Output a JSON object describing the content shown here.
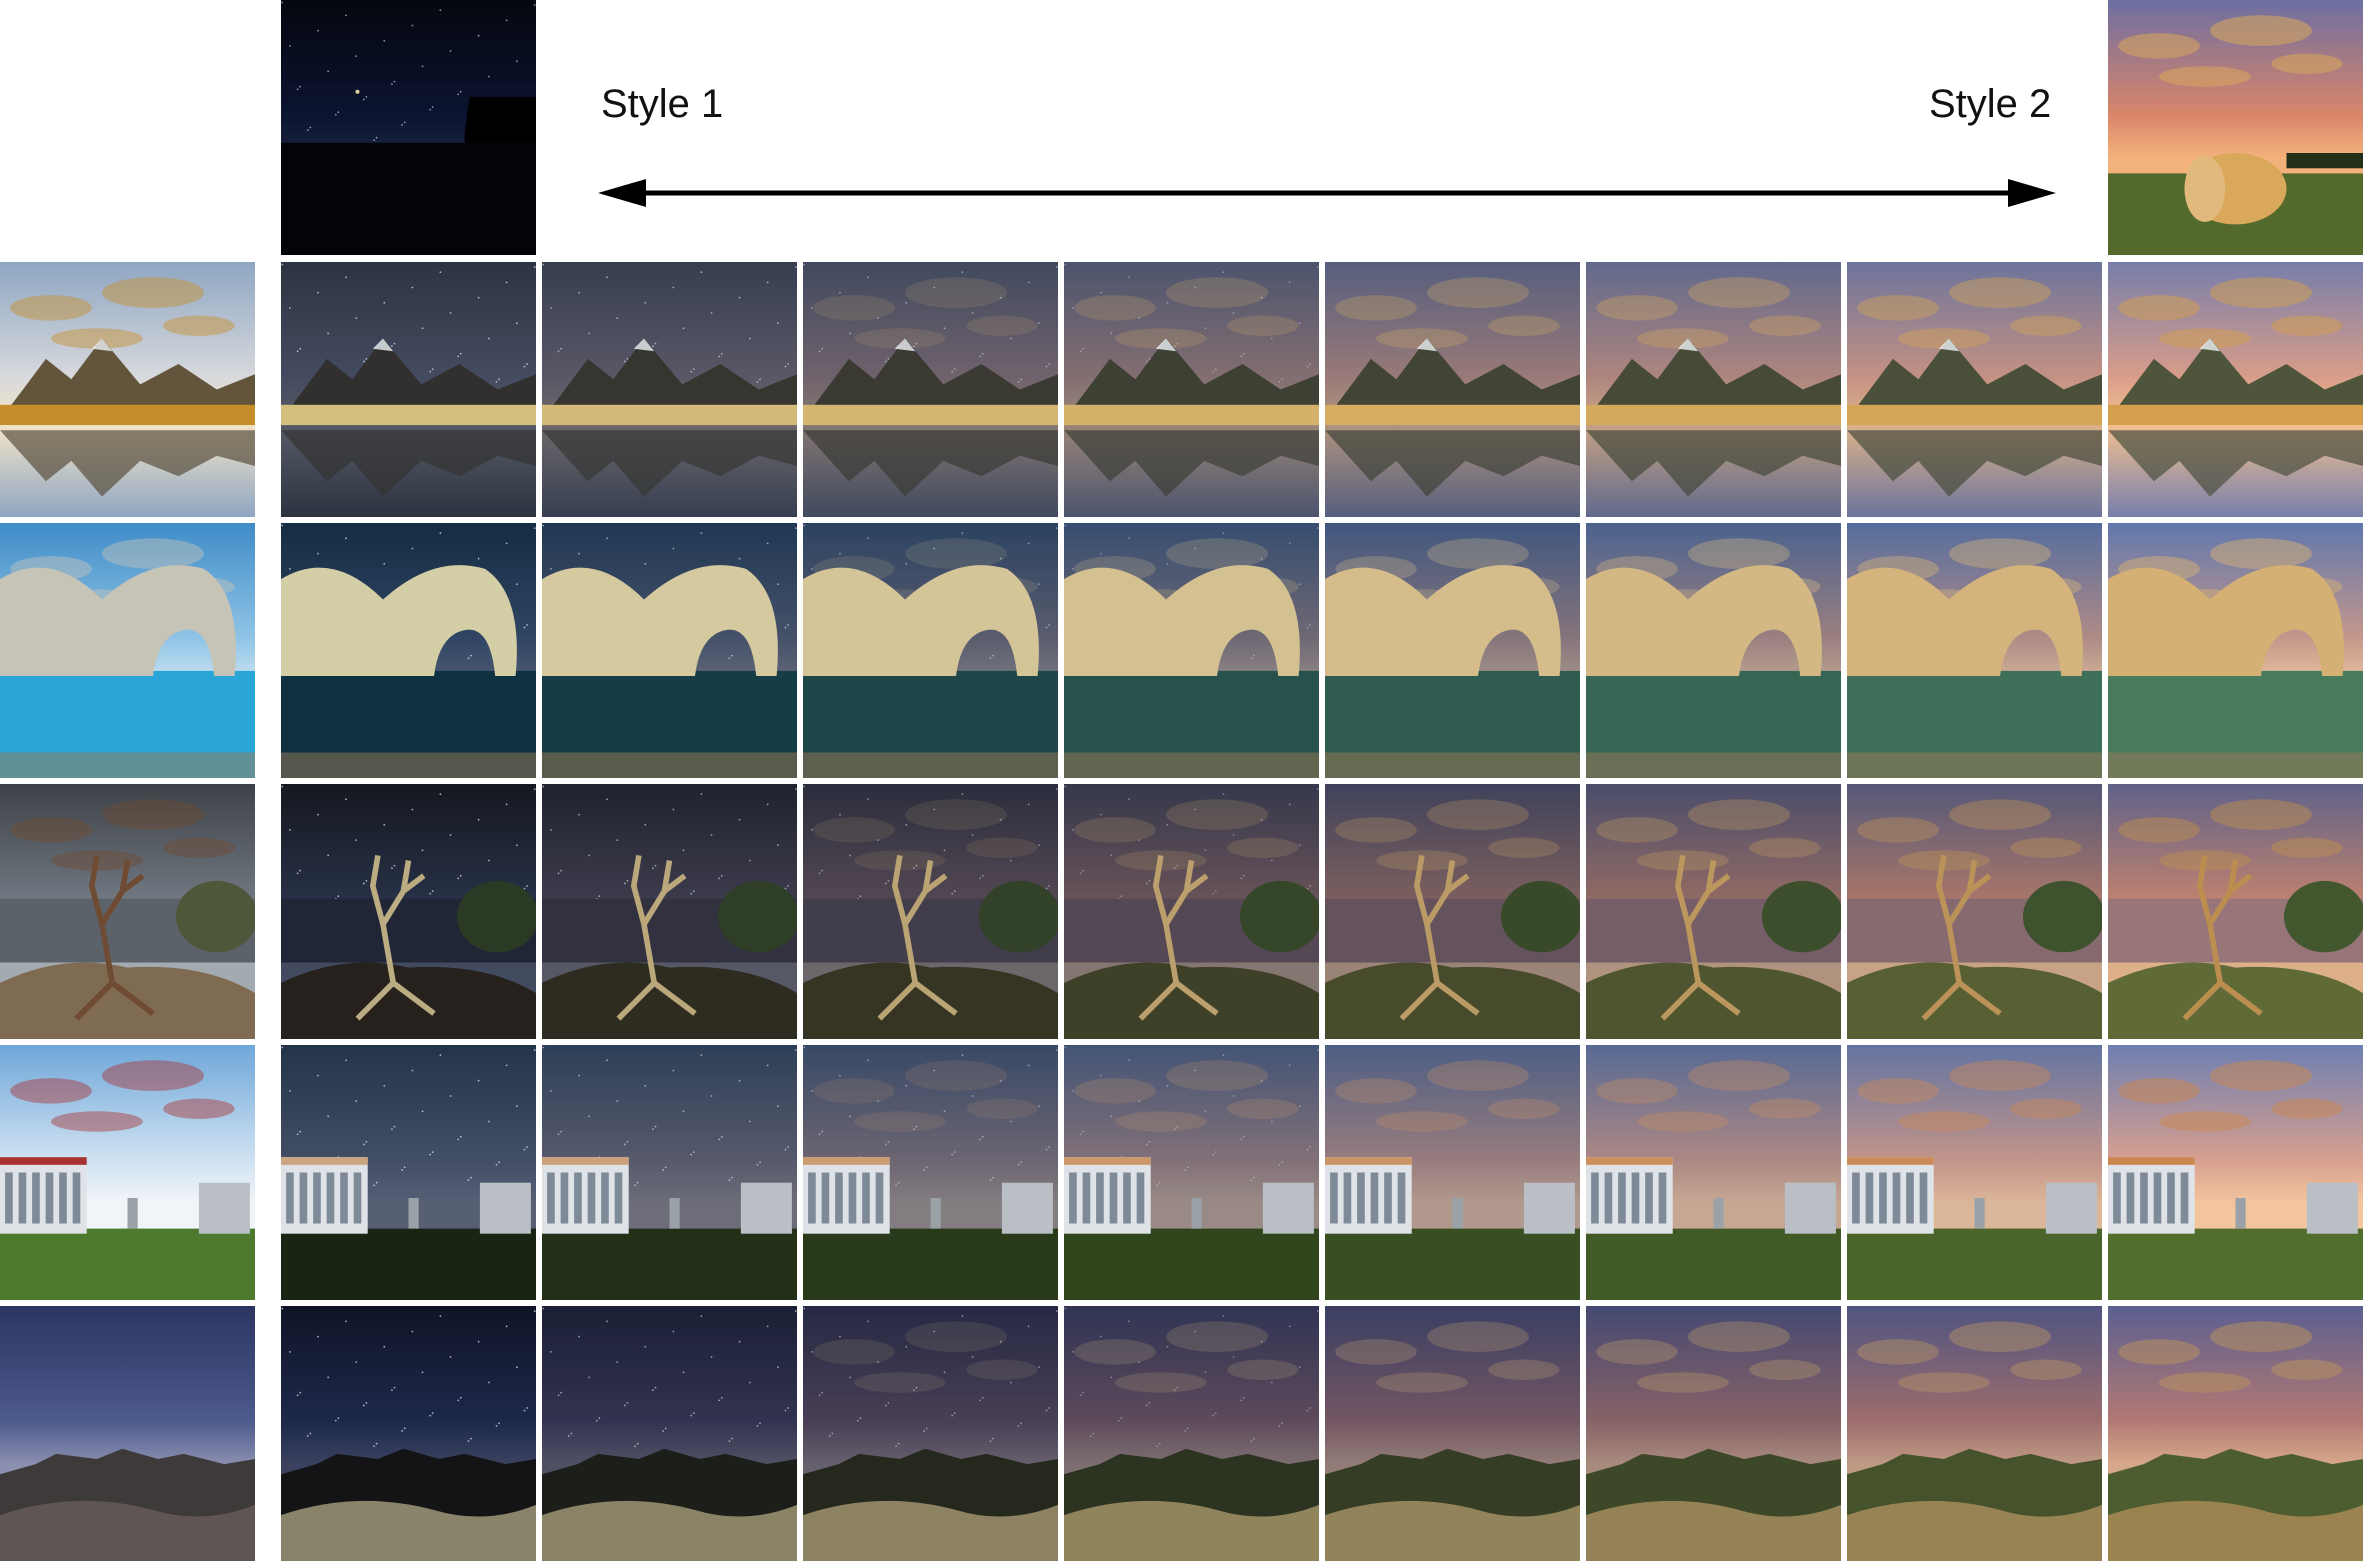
{
  "header": {
    "left_label": "Style 1",
    "right_label": "Style 2"
  },
  "style_references": [
    {
      "name": "style-1-night-barn",
      "sky_top": "#05070f",
      "sky_mid": "#0b1430",
      "horizon": "#1a2440",
      "ground": "#030407",
      "accent": "#d9d2a0"
    },
    {
      "name": "style-2-sunset-hay-field",
      "sky_top": "#6d6fa2",
      "sky_mid": "#d98569",
      "horizon": "#f3b27b",
      "ground": "#546a2c",
      "accent": "#d9a85b"
    }
  ],
  "interpolation_steps": 8,
  "rows": [
    {
      "name": "mountain-lake",
      "scene": "mountain",
      "content": {
        "sky_top": "#8fa6c2",
        "sky_mid": "#d7d9dc",
        "horizon": "#f1e4c8",
        "ground": "#8a6a2c",
        "accent": "#c78d2a"
      }
    },
    {
      "name": "sea-arch",
      "scene": "arch",
      "content": {
        "sky_top": "#3f8cc8",
        "sky_mid": "#8fc4e6",
        "horizon": "#c8e2f2",
        "ground": "#29a5d8",
        "accent": "#c6c3b7"
      }
    },
    {
      "name": "dead-tree-cliff",
      "scene": "tree",
      "content": {
        "sky_top": "#3e4248",
        "sky_mid": "#707780",
        "horizon": "#a4abb0",
        "ground": "#7f6a52",
        "accent": "#6e4b32"
      }
    },
    {
      "name": "modern-building",
      "scene": "building",
      "content": {
        "sky_top": "#6fa7d9",
        "sky_mid": "#cfe2f2",
        "horizon": "#f2f5f8",
        "ground": "#4e7a2e",
        "accent": "#a83232"
      }
    },
    {
      "name": "rock-plateau",
      "scene": "rocks",
      "content": {
        "sky_top": "#2c3562",
        "sky_mid": "#4d5a8c",
        "horizon": "#8b8fb0",
        "ground": "#3e3a3a",
        "accent": "#6d6260"
      }
    }
  ]
}
